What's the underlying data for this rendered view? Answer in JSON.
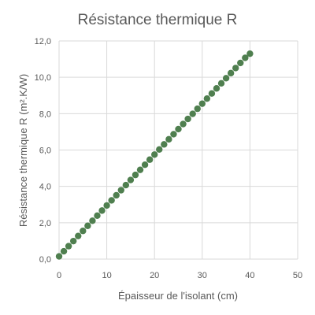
{
  "chart_data": {
    "type": "scatter",
    "title": "Résistance thermique R",
    "xlabel": "Épaisseur de l'isolant (cm)",
    "ylabel": "Résistance thermique R (m².K/W)",
    "xlim": [
      0,
      50
    ],
    "ylim": [
      0,
      12
    ],
    "x_ticks": [
      "0",
      "10",
      "20",
      "30",
      "40",
      "50"
    ],
    "y_ticks": [
      "0,0",
      "2,0",
      "4,0",
      "6,0",
      "8,0",
      "10,0",
      "12,0"
    ],
    "grid": true,
    "legend": "none",
    "marker_color": "#4f7f4f",
    "series": [
      {
        "x": [
          0,
          1,
          2,
          3,
          4,
          5,
          6,
          7,
          8,
          9,
          10,
          11,
          12,
          13,
          14,
          15,
          16,
          17,
          18,
          19,
          20,
          21,
          22,
          23,
          24,
          25,
          26,
          27,
          28,
          29,
          30,
          31,
          32,
          33,
          34,
          35,
          36,
          37,
          38,
          39,
          40
        ],
        "values": [
          0.15,
          0.43,
          0.71,
          0.99,
          1.27,
          1.55,
          1.83,
          2.11,
          2.39,
          2.67,
          2.95,
          3.23,
          3.51,
          3.79,
          4.07,
          4.35,
          4.63,
          4.91,
          5.19,
          5.47,
          5.75,
          6.03,
          6.31,
          6.59,
          6.87,
          7.15,
          7.43,
          7.71,
          7.99,
          8.27,
          8.55,
          8.83,
          9.11,
          9.39,
          9.67,
          9.95,
          10.23,
          10.51,
          10.79,
          11.07,
          11.3
        ]
      }
    ]
  }
}
